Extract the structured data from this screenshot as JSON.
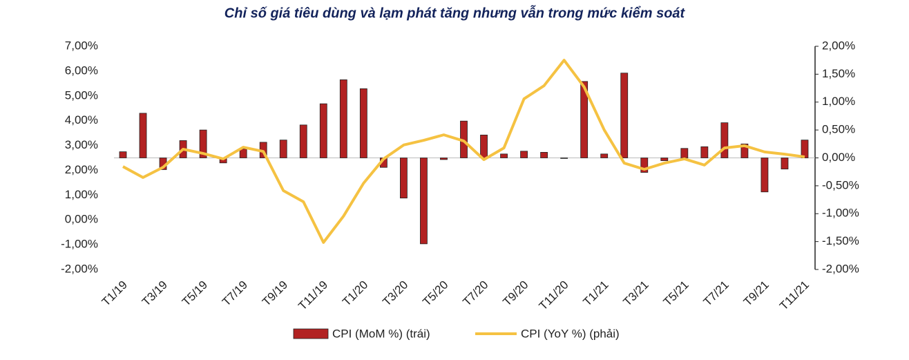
{
  "chart_data": {
    "type": "bar-line",
    "title": "Chỉ số giá tiêu dùng và lạm phát tăng nhưng vẫn trong mức kiểm soát",
    "categories": [
      "T1/19",
      null,
      "T3/19",
      null,
      "T5/19",
      null,
      "T7/19",
      null,
      "T9/19",
      null,
      "T11/19",
      null,
      "T1/20",
      null,
      "T3/20",
      null,
      "T5/20",
      null,
      "T7/20",
      null,
      "T9/20",
      null,
      "T11/20",
      null,
      "T1/21",
      null,
      "T3/21",
      null,
      "T5/21",
      null,
      "T7/21",
      null,
      "T9/21",
      null,
      "T11/21"
    ],
    "series": [
      {
        "name": "CPI (MoM %) (trái)",
        "type": "bar",
        "axis": "y2",
        "color": "#b22222",
        "values": [
          0.11,
          0.8,
          -0.21,
          0.31,
          0.5,
          -0.09,
          0.16,
          0.28,
          0.32,
          0.59,
          0.97,
          1.4,
          1.24,
          -0.17,
          -0.72,
          -1.54,
          -0.03,
          0.66,
          0.41,
          0.07,
          0.12,
          0.1,
          -0.01,
          1.37,
          0.07,
          1.52,
          -0.26,
          -0.05,
          0.17,
          0.2,
          0.63,
          0.25,
          -0.61,
          -0.2,
          0.32
        ]
      },
      {
        "name": "CPI (YoY %) (phải)",
        "type": "line",
        "color": "#f5c242",
        "values": [
          2.15,
          1.71,
          2.12,
          2.85,
          2.68,
          2.46,
          2.93,
          2.76,
          1.18,
          0.73,
          -0.91,
          0.15,
          1.48,
          2.46,
          3.02,
          3.21,
          3.43,
          3.18,
          2.43,
          2.9,
          4.88,
          5.41,
          6.44,
          5.36,
          3.63,
          2.29,
          2.04,
          2.29,
          2.46,
          2.21,
          2.9,
          2.99,
          2.74,
          2.65,
          2.54
        ]
      }
    ],
    "ylim": [
      -2,
      7
    ],
    "yticks": [
      {
        "value": -2,
        "label": "-2,00%"
      },
      {
        "value": -1,
        "label": "-1,00%"
      },
      {
        "value": 0,
        "label": "0,00%"
      },
      {
        "value": 1,
        "label": "1,00%"
      },
      {
        "value": 2,
        "label": "2,00%"
      },
      {
        "value": 3,
        "label": "3,00%"
      },
      {
        "value": 4,
        "label": "4,00%"
      },
      {
        "value": 5,
        "label": "5,00%"
      },
      {
        "value": 6,
        "label": "6,00%"
      },
      {
        "value": 7,
        "label": "7,00%"
      }
    ],
    "y2lim": [
      -2,
      2
    ],
    "y2ticks": [
      {
        "value": -2,
        "label": "-2,00%"
      },
      {
        "value": -1.5,
        "label": "-1,50%"
      },
      {
        "value": -1,
        "label": "-1,00%"
      },
      {
        "value": -0.5,
        "label": "-0,50%"
      },
      {
        "value": 0,
        "label": "0,00%"
      },
      {
        "value": 0.5,
        "label": "0,50%"
      },
      {
        "value": 1,
        "label": "1,00%"
      },
      {
        "value": 1.5,
        "label": "1,50%"
      },
      {
        "value": 2,
        "label": "2,00%"
      }
    ]
  }
}
